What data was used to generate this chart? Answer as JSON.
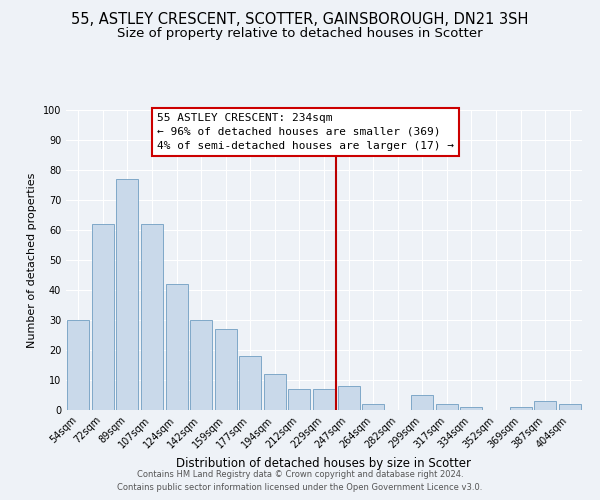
{
  "title": "55, ASTLEY CRESCENT, SCOTTER, GAINSBOROUGH, DN21 3SH",
  "subtitle": "Size of property relative to detached houses in Scotter",
  "xlabel": "Distribution of detached houses by size in Scotter",
  "ylabel": "Number of detached properties",
  "categories": [
    "54sqm",
    "72sqm",
    "89sqm",
    "107sqm",
    "124sqm",
    "142sqm",
    "159sqm",
    "177sqm",
    "194sqm",
    "212sqm",
    "229sqm",
    "247sqm",
    "264sqm",
    "282sqm",
    "299sqm",
    "317sqm",
    "334sqm",
    "352sqm",
    "369sqm",
    "387sqm",
    "404sqm"
  ],
  "values": [
    30,
    62,
    77,
    62,
    42,
    30,
    27,
    18,
    12,
    7,
    7,
    8,
    2,
    0,
    5,
    2,
    1,
    0,
    1,
    3,
    2
  ],
  "bar_color": "#c9d9ea",
  "bar_edge_color": "#7fa8c8",
  "ylim": [
    0,
    100
  ],
  "yticks": [
    0,
    10,
    20,
    30,
    40,
    50,
    60,
    70,
    80,
    90,
    100
  ],
  "vline_x": 10.5,
  "vline_color": "#bb0000",
  "annotation_title": "55 ASTLEY CRESCENT: 234sqm",
  "annotation_line1": "← 96% of detached houses are smaller (369)",
  "annotation_line2": "4% of semi-detached houses are larger (17) →",
  "annotation_box_color": "#cc0000",
  "background_color": "#eef2f7",
  "grid_color": "#ffffff",
  "footer_line1": "Contains HM Land Registry data © Crown copyright and database right 2024.",
  "footer_line2": "Contains public sector information licensed under the Open Government Licence v3.0.",
  "title_fontsize": 10.5,
  "subtitle_fontsize": 9.5,
  "xlabel_fontsize": 8.5,
  "ylabel_fontsize": 8,
  "tick_fontsize": 7,
  "annotation_fontsize": 8,
  "footer_fontsize": 6
}
